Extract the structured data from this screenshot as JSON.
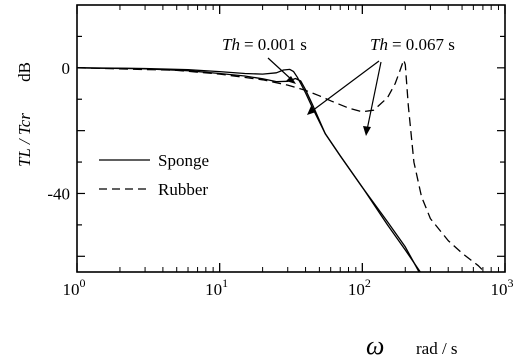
{
  "chart_data": {
    "type": "line",
    "title": "",
    "xlabel": {
      "symbol": "ω",
      "unit": "rad / s"
    },
    "ylabel": {
      "ratio": "TL / Tcr",
      "unit": "dB"
    },
    "x_scale": "log",
    "xlim": [
      1,
      1000
    ],
    "ylim": [
      -65,
      20
    ],
    "x_ticks": [
      {
        "value": 1,
        "base": "10",
        "exp": "0"
      },
      {
        "value": 10,
        "base": "10",
        "exp": "1"
      },
      {
        "value": 100,
        "base": "10",
        "exp": "2"
      },
      {
        "value": 1000,
        "base": "10",
        "exp": "3"
      }
    ],
    "y_ticks": [
      {
        "value": 0,
        "label": "0"
      },
      {
        "value": -40,
        "label": "-40"
      }
    ],
    "grid": false,
    "legend": {
      "placement": "center-left",
      "entries": [
        {
          "name": "Sponge",
          "style": "solid"
        },
        {
          "name": "Rubber",
          "style": "dashed"
        }
      ]
    },
    "annotations": [
      {
        "prefix": "Th",
        "text": "= 0.001 s",
        "x": 30,
        "y": 0
      },
      {
        "prefix": "Th",
        "text": "= 0.067  s",
        "x": [
          40,
          110
        ],
        "y": [
          -8,
          -15
        ]
      }
    ],
    "series": [
      {
        "name": "Sponge",
        "style": "solid",
        "curves": [
          {
            "x": [
              1,
              3,
              6,
              10,
              15,
              20,
              25,
              28,
              31,
              33,
              35,
              37,
              40,
              45,
              55,
              70,
              100,
              150,
              200,
              250
            ],
            "y": [
              0,
              -0.2,
              -0.6,
              -1.2,
              -1.8,
              -2.0,
              -1.6,
              -0.7,
              -0.5,
              -1.2,
              -3,
              -5,
              -8,
              -13,
              -21,
              -28,
              -38,
              -49,
              -57,
              -65
            ]
          },
          {
            "x": [
              1,
              3,
              6,
              10,
              15,
              20,
              25,
              30,
              34,
              37,
              40,
              45,
              55,
              70,
              100,
              150,
              200,
              255
            ],
            "y": [
              0,
              -0.3,
              -0.9,
              -1.8,
              -2.6,
              -3.5,
              -4.4,
              -4.3,
              -3.4,
              -4.2,
              -7,
              -12,
              -21,
              -28,
              -38,
              -50,
              -58,
              -65
            ]
          }
        ]
      },
      {
        "name": "Rubber",
        "style": "dashed",
        "curves": [
          {
            "x": [
              1,
              5,
              10,
              20,
              30,
              40,
              50,
              60,
              80,
              100,
              120,
              150,
              170,
              185,
              195,
              200,
              210,
              230,
              260,
              300,
              400,
              500,
              650,
              720
            ],
            "y": [
              0,
              -0.8,
              -2.0,
              -3.8,
              -5.5,
              -7.2,
              -8.9,
              -10.5,
              -12.8,
              -14.0,
              -13.5,
              -9.5,
              -5.0,
              -0.5,
              2.5,
              1.0,
              -12,
              -30,
              -41,
              -48,
              -55,
              -59,
              -63,
              -65
            ]
          }
        ]
      }
    ]
  }
}
